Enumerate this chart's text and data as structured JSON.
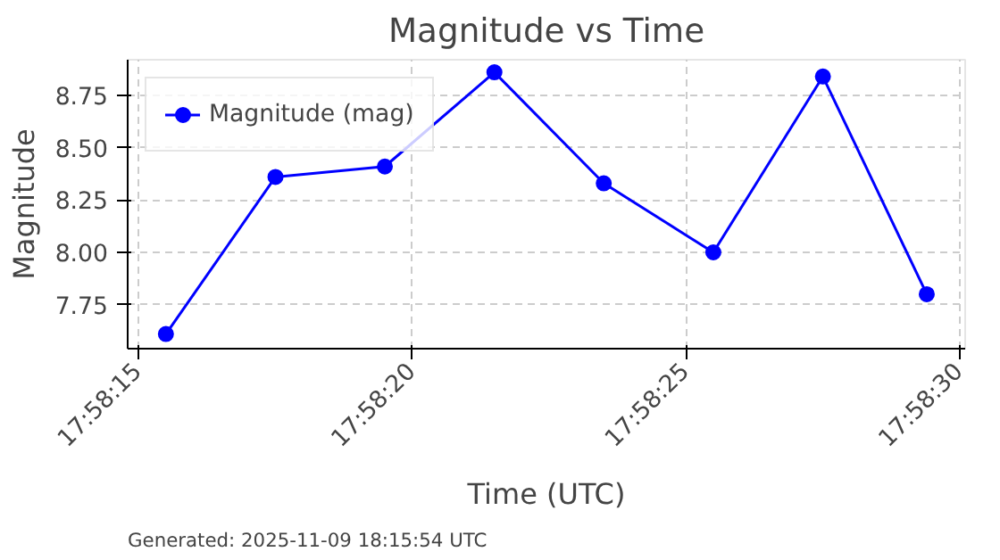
{
  "chart_data": {
    "type": "line",
    "title": "Magnitude vs Time",
    "xlabel": "Time (UTC)",
    "ylabel": "Magnitude",
    "x": [
      17.970972,
      17.971528,
      17.972083,
      17.972639,
      17.973194,
      17.97375,
      17.974306,
      17.974833
    ],
    "series": [
      {
        "name": "Magnitude (mag)",
        "color": "#0000ff",
        "values": [
          7.61,
          8.36,
          8.41,
          8.86,
          8.33,
          8.0,
          8.84,
          7.8
        ]
      }
    ],
    "xlim": [
      17.970778,
      17.975028
    ],
    "xticks": [
      {
        "value": 17.970833,
        "label": "17:58:15"
      },
      {
        "value": 17.972222,
        "label": "17:58:20"
      },
      {
        "value": 17.973611,
        "label": "17:58:25"
      },
      {
        "value": 17.975,
        "label": "17:58:30"
      }
    ],
    "ylim": [
      7.54,
      8.92
    ],
    "yticks": [
      7.75,
      {
        "value": 8.0,
        "label": "8.00"
      },
      8.25,
      {
        "value": 8.5,
        "label": "8.50"
      },
      8.75
    ],
    "grid": true,
    "legend": "top left",
    "marker": "circle",
    "line_style": "solid",
    "annotations": [
      "Generated: 2025-11-09 18:15:54 UTC"
    ]
  }
}
